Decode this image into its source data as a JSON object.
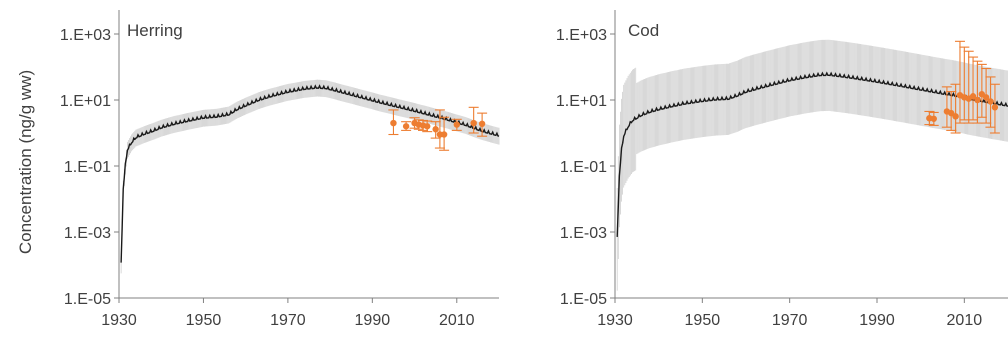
{
  "chart_data": [
    {
      "type": "line",
      "title": "Herring",
      "ylabel": "Concentration (ng/g ww)",
      "xlabel": "",
      "y_scale": "log",
      "xlim": [
        1930,
        2020
      ],
      "ylim": [
        1e-05,
        1000
      ],
      "x_ticks": [
        1930,
        1950,
        1970,
        1990,
        2010
      ],
      "y_ticks": [
        {
          "v": 1000,
          "label": "1.E+03"
        },
        {
          "v": 10,
          "label": "1.E+01"
        },
        {
          "v": 0.1,
          "label": "1.E-01"
        },
        {
          "v": 0.001,
          "label": "1.E-03"
        },
        {
          "v": 1e-05,
          "label": "1.E-05"
        }
      ],
      "grid": false,
      "colors": {
        "model": "#1a1a1a",
        "band": "#c8c8c8",
        "observed": "#ed7d31"
      },
      "model": {
        "x": [
          1930.5,
          1931,
          1931.5,
          1932,
          1933,
          1934,
          1936,
          1938,
          1940,
          1943,
          1946,
          1950,
          1953,
          1956,
          1958,
          1960,
          1963,
          1966,
          1970,
          1974,
          1977,
          1979,
          1981,
          1984,
          1988,
          1992,
          1996,
          2000,
          2004,
          2008,
          2012,
          2016,
          2020
        ],
        "y": [
          0.0001,
          0.02,
          0.1,
          0.3,
          0.5,
          0.7,
          0.9,
          1.1,
          1.4,
          1.8,
          2.2,
          2.8,
          3.0,
          3.5,
          5.0,
          6.5,
          9.5,
          12.5,
          17,
          21,
          23,
          22,
          19,
          15,
          11,
          8,
          6,
          4.5,
          3.3,
          2.4,
          1.7,
          1.1,
          0.8
        ],
        "band_factor": 1.8
      },
      "observed": [
        {
          "x": 1995,
          "y": 2.0,
          "lo": 0.9,
          "hi": 5.0
        },
        {
          "x": 1998,
          "y": 1.6,
          "lo": 1.2,
          "hi": 2.2
        },
        {
          "x": 2000,
          "y": 2.0,
          "lo": 1.4,
          "hi": 2.9
        },
        {
          "x": 2001,
          "y": 1.8,
          "lo": 1.3,
          "hi": 2.5
        },
        {
          "x": 2002,
          "y": 1.7,
          "lo": 1.2,
          "hi": 2.4
        },
        {
          "x": 2003,
          "y": 1.6,
          "lo": 1.1,
          "hi": 2.3
        },
        {
          "x": 2005,
          "y": 1.3,
          "lo": 0.7,
          "hi": 2.2
        },
        {
          "x": 2006,
          "y": 0.9,
          "lo": 0.35,
          "hi": 5.0
        },
        {
          "x": 2007,
          "y": 0.9,
          "lo": 0.3,
          "hi": 3.0
        },
        {
          "x": 2010,
          "y": 1.8,
          "lo": 1.2,
          "hi": 2.6
        },
        {
          "x": 2014,
          "y": 2.0,
          "lo": 1.0,
          "hi": 6.0
        },
        {
          "x": 2016,
          "y": 1.9,
          "lo": 0.8,
          "hi": 4.0
        }
      ]
    },
    {
      "type": "line",
      "title": "Cod",
      "ylabel": "",
      "xlabel": "",
      "y_scale": "log",
      "xlim": [
        1930,
        2020
      ],
      "ylim": [
        1e-05,
        1000
      ],
      "x_ticks": [
        1930,
        1950,
        1970,
        1990,
        2010
      ],
      "y_ticks": [
        {
          "v": 1000,
          "label": "1.E+03"
        },
        {
          "v": 10,
          "label": "1.E+01"
        },
        {
          "v": 0.1,
          "label": "1.E-01"
        },
        {
          "v": 0.001,
          "label": "1.E-03"
        },
        {
          "v": 1e-05,
          "label": "1.E-05"
        }
      ],
      "grid": false,
      "colors": {
        "model": "#1a1a1a",
        "band": "#c8c8c8",
        "observed": "#ed7d31"
      },
      "model": {
        "x": [
          1930.5,
          1931,
          1931.5,
          1932,
          1933,
          1934,
          1936,
          1938,
          1940,
          1943,
          1946,
          1950,
          1953,
          1956,
          1958,
          1960,
          1963,
          1966,
          1970,
          1974,
          1977,
          1979,
          1981,
          1984,
          1988,
          1992,
          1996,
          2000,
          2004,
          2008,
          2012,
          2016,
          2020
        ],
        "y": [
          0.0006,
          0.05,
          0.3,
          0.8,
          1.5,
          2.3,
          3.3,
          4.2,
          5.0,
          6.2,
          7.5,
          9.0,
          10,
          10.5,
          13,
          17,
          22,
          28,
          38,
          48,
          55,
          56,
          52,
          46,
          38,
          31,
          25,
          20,
          16,
          13,
          10,
          8,
          6.5
        ],
        "band_factor": 12
      },
      "observed": [
        {
          "x": 2002,
          "y": 2.8,
          "lo": 1.8,
          "hi": 4.5
        },
        {
          "x": 2003,
          "y": 2.7,
          "lo": 1.7,
          "hi": 4.2
        },
        {
          "x": 2006,
          "y": 4.5,
          "lo": 1.5,
          "hi": 25
        },
        {
          "x": 2007,
          "y": 4.0,
          "lo": 1.2,
          "hi": 18
        },
        {
          "x": 2008,
          "y": 3.2,
          "lo": 1.0,
          "hi": 30
        },
        {
          "x": 2009,
          "y": 14,
          "lo": 2.0,
          "hi": 600
        },
        {
          "x": 2010,
          "y": 12,
          "lo": 2.5,
          "hi": 400
        },
        {
          "x": 2011,
          "y": 11,
          "lo": 2.0,
          "hi": 300
        },
        {
          "x": 2012,
          "y": 13,
          "lo": 2.5,
          "hi": 200
        },
        {
          "x": 2013,
          "y": 10,
          "lo": 2.0,
          "hi": 150
        },
        {
          "x": 2014,
          "y": 15,
          "lo": 3.0,
          "hi": 120
        },
        {
          "x": 2015,
          "y": 12,
          "lo": 2.0,
          "hi": 90
        },
        {
          "x": 2016,
          "y": 9,
          "lo": 1.5,
          "hi": 50
        },
        {
          "x": 2017,
          "y": 6,
          "lo": 1.0,
          "hi": 30
        }
      ]
    }
  ]
}
